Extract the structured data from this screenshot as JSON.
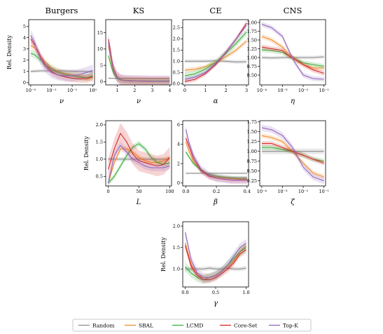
{
  "colors": {
    "Random": "#8c8c8c",
    "SBAL": "#f28e2b",
    "LCMD": "#3cae3c",
    "Core-Set": "#d62728",
    "Top-K": "#9467bd"
  },
  "chart_data": [
    {
      "type": "line",
      "title": "Burgers",
      "xlabel": "ν",
      "ylabel": "Rel. Density",
      "xscale": "log",
      "xlim": [
        0.0008,
        1.2
      ],
      "ylim": [
        -0.2,
        5.6
      ],
      "xticks": [
        0.001,
        0.01,
        0.1,
        1
      ],
      "xticklabels": [
        "10⁻³",
        "10⁻²",
        "10⁻¹",
        "10⁰"
      ],
      "yticks": [
        0,
        1,
        2,
        3,
        4,
        5
      ],
      "yticklabels": [
        "0",
        "1",
        "2",
        "3",
        "4",
        "5"
      ],
      "x": [
        0.001,
        0.0015,
        0.002,
        0.003,
        0.005,
        0.01,
        0.02,
        0.05,
        0.1,
        0.2,
        0.5,
        1
      ],
      "series": [
        {
          "name": "Random",
          "values": [
            1.0,
            1.02,
            1.03,
            1.05,
            1.05,
            1.05,
            1.05,
            1.05,
            1.03,
            1.0,
            0.98,
            0.95
          ],
          "band": 0.15
        },
        {
          "name": "SBAL",
          "values": [
            3.3,
            3.1,
            2.8,
            2.3,
            1.8,
            1.3,
            1.0,
            0.8,
            0.7,
            0.6,
            0.45,
            0.5
          ],
          "band": 0.3
        },
        {
          "name": "LCMD",
          "values": [
            2.6,
            2.5,
            2.3,
            2.0,
            1.6,
            1.2,
            0.9,
            0.7,
            0.6,
            0.5,
            0.45,
            0.6
          ],
          "band": 0.3
        },
        {
          "name": "Core-Set",
          "values": [
            3.9,
            3.4,
            3.0,
            2.3,
            1.6,
            1.0,
            0.7,
            0.5,
            0.4,
            0.35,
            0.35,
            0.5
          ],
          "band": 0.35
        },
        {
          "name": "Top-K",
          "values": [
            4.2,
            3.6,
            2.9,
            2.1,
            1.4,
            0.9,
            0.7,
            0.6,
            0.6,
            0.7,
            0.9,
            1.1
          ],
          "band": 0.5
        }
      ]
    },
    {
      "type": "line",
      "title": "KS",
      "xlabel": "ν",
      "ylabel": "",
      "xscale": "linear",
      "xlim": [
        0.35,
        4.1
      ],
      "ylim": [
        -1,
        19
      ],
      "xticks": [
        1,
        2,
        3,
        4
      ],
      "xticklabels": [
        "1",
        "2",
        "3",
        "4"
      ],
      "yticks": [
        0,
        5,
        10,
        15
      ],
      "yticklabels": [
        "0",
        "5",
        "10",
        "15"
      ],
      "x": [
        0.5,
        0.6,
        0.7,
        0.8,
        1.0,
        1.2,
        1.5,
        2.0,
        3.0,
        4.0
      ],
      "series": [
        {
          "name": "Random",
          "values": [
            1.1,
            1.0,
            1.0,
            1.0,
            1.0,
            1.0,
            1.0,
            1.0,
            1.0,
            1.0
          ],
          "band": 0.2
        },
        {
          "name": "SBAL",
          "values": [
            11.0,
            8.0,
            5.0,
            3.0,
            1.3,
            0.6,
            0.4,
            0.3,
            0.2,
            0.2
          ],
          "band": 1.0
        },
        {
          "name": "LCMD",
          "values": [
            8.0,
            6.0,
            4.0,
            2.5,
            1.0,
            0.5,
            0.3,
            0.2,
            0.2,
            0.2
          ],
          "band": 0.8
        },
        {
          "name": "Core-Set",
          "values": [
            13.0,
            10.0,
            6.5,
            4.0,
            1.5,
            0.6,
            0.3,
            0.2,
            0.1,
            0.1
          ],
          "band": 1.5
        },
        {
          "name": "Top-K",
          "values": [
            12.0,
            9.0,
            6.0,
            3.5,
            1.4,
            0.6,
            0.3,
            0.2,
            0.1,
            0.1
          ],
          "band": 1.8
        }
      ]
    },
    {
      "type": "line",
      "title": "CE",
      "xlabel": "α",
      "ylabel": "",
      "xscale": "linear",
      "xlim": [
        -0.1,
        3.1
      ],
      "ylim": [
        -0.05,
        2.85
      ],
      "xticks": [
        0,
        1,
        2,
        3
      ],
      "xticklabels": [
        "0",
        "1",
        "2",
        "3"
      ],
      "yticks": [
        0,
        0.5,
        1.0,
        1.5,
        2.0,
        2.5
      ],
      "yticklabels": [
        "0.0",
        "0.5",
        "1.0",
        "1.5",
        "2.0",
        "2.5"
      ],
      "x": [
        0,
        0.5,
        1.0,
        1.5,
        2.0,
        2.5,
        3.0
      ],
      "series": [
        {
          "name": "Random",
          "values": [
            1.0,
            1.0,
            1.0,
            1.02,
            1.0,
            0.97,
            0.98
          ],
          "band": 0.08
        },
        {
          "name": "SBAL",
          "values": [
            0.6,
            0.65,
            0.75,
            0.95,
            1.2,
            1.5,
            1.9
          ],
          "band": 0.1
        },
        {
          "name": "LCMD",
          "values": [
            0.35,
            0.45,
            0.65,
            0.95,
            1.35,
            1.8,
            2.3
          ],
          "band": 0.15
        },
        {
          "name": "Core-Set",
          "values": [
            0.1,
            0.2,
            0.45,
            0.85,
            1.4,
            2.0,
            2.7
          ],
          "band": 0.1
        },
        {
          "name": "Top-K",
          "values": [
            0.2,
            0.3,
            0.5,
            0.9,
            1.4,
            2.0,
            2.6
          ],
          "band": 0.1
        }
      ]
    },
    {
      "type": "line",
      "title": "CNS",
      "xlabel": "η",
      "ylabel": "",
      "xscale": "log",
      "xlim": [
        8e-05,
        0.12
      ],
      "ylim": [
        0.22,
        2.08
      ],
      "xticks": [
        0.0001,
        0.001,
        0.01,
        0.1
      ],
      "xticklabels": [
        "10⁻⁴",
        "10⁻³",
        "10⁻²",
        "10⁻¹"
      ],
      "yticks": [
        0.5,
        0.75,
        1.0,
        1.25,
        1.5,
        1.75,
        2.0
      ],
      "yticklabels": [
        "0.50",
        "0.75",
        "1.00",
        "1.25",
        "1.50",
        "1.75",
        "2.00"
      ],
      "x": [
        0.0001,
        0.0003,
        0.001,
        0.002,
        0.004,
        0.01,
        0.03,
        0.1
      ],
      "series": [
        {
          "name": "Random",
          "values": [
            1.0,
            0.99,
            1.0,
            1.0,
            1.0,
            1.0,
            1.0,
            1.02
          ],
          "band": 0.05
        },
        {
          "name": "SBAL",
          "values": [
            1.6,
            1.5,
            1.3,
            1.1,
            0.95,
            0.8,
            0.7,
            0.7
          ],
          "band": 0.07
        },
        {
          "name": "LCMD",
          "values": [
            1.22,
            1.2,
            1.15,
            1.05,
            0.95,
            0.85,
            0.8,
            0.75
          ],
          "band": 0.07
        },
        {
          "name": "Core-Set",
          "values": [
            1.3,
            1.25,
            1.2,
            1.05,
            0.95,
            0.8,
            0.65,
            0.55
          ],
          "band": 0.07
        },
        {
          "name": "Top-K",
          "values": [
            1.95,
            1.85,
            1.6,
            1.2,
            0.85,
            0.5,
            0.4,
            0.38
          ],
          "band": 0.07
        }
      ]
    },
    {
      "type": "line",
      "title": "",
      "xlabel": "L",
      "ylabel": "Rel. Density",
      "xscale": "linear",
      "xlim": [
        -4,
        103
      ],
      "ylim": [
        0.22,
        2.12
      ],
      "xticks": [
        0,
        50,
        100
      ],
      "xticklabels": [
        "0",
        "50",
        "100"
      ],
      "yticks": [
        0.5,
        1.0,
        1.5,
        2.0
      ],
      "yticklabels": [
        "0.5",
        "1.0",
        "1.5",
        "2.0"
      ],
      "x": [
        0,
        10,
        20,
        30,
        40,
        50,
        60,
        70,
        80,
        90,
        100
      ],
      "series": [
        {
          "name": "Random",
          "values": [
            1.0,
            1.0,
            1.0,
            1.0,
            1.0,
            1.0,
            1.0,
            1.0,
            1.0,
            1.0,
            1.0
          ],
          "band": 0.06
        },
        {
          "name": "SBAL",
          "values": [
            0.3,
            0.9,
            1.3,
            1.3,
            1.2,
            1.05,
            0.95,
            0.9,
            0.9,
            0.95,
            1.05
          ],
          "band": 0.08
        },
        {
          "name": "LCMD",
          "values": [
            0.3,
            0.5,
            0.8,
            1.1,
            1.35,
            1.45,
            1.3,
            1.05,
            0.9,
            0.85,
            0.9
          ],
          "band": 0.08
        },
        {
          "name": "Core-Set",
          "values": [
            0.7,
            1.3,
            1.75,
            1.5,
            1.15,
            0.95,
            0.9,
            0.85,
            0.8,
            0.85,
            1.05
          ],
          "band": 0.3
        },
        {
          "name": "Top-K",
          "values": [
            0.3,
            1.1,
            1.4,
            1.2,
            1.0,
            0.9,
            0.8,
            0.75,
            0.75,
            0.75,
            0.8
          ],
          "band": 0.1
        }
      ]
    },
    {
      "type": "line",
      "title": "",
      "xlabel": "β",
      "ylabel": "",
      "xscale": "linear",
      "xlim": [
        -0.02,
        0.41
      ],
      "ylim": [
        -0.3,
        6.4
      ],
      "xticks": [
        0,
        0.2,
        0.4
      ],
      "xticklabels": [
        "0.0",
        "0.2",
        "0.4"
      ],
      "yticks": [
        0,
        2,
        4,
        6
      ],
      "yticklabels": [
        "0",
        "2",
        "4",
        "6"
      ],
      "x": [
        0,
        0.02,
        0.05,
        0.1,
        0.15,
        0.2,
        0.25,
        0.3,
        0.35,
        0.4
      ],
      "series": [
        {
          "name": "Random",
          "values": [
            1.0,
            1.0,
            1.0,
            1.0,
            1.0,
            1.0,
            1.0,
            1.0,
            1.0,
            1.0
          ],
          "band": 0.1
        },
        {
          "name": "SBAL",
          "values": [
            4.2,
            3.3,
            2.2,
            1.2,
            0.8,
            0.6,
            0.5,
            0.45,
            0.4,
            0.4
          ],
          "band": 0.2
        },
        {
          "name": "LCMD",
          "values": [
            3.2,
            2.7,
            2.0,
            1.3,
            0.9,
            0.7,
            0.6,
            0.55,
            0.5,
            0.5
          ],
          "band": 0.2
        },
        {
          "name": "Core-Set",
          "values": [
            4.6,
            3.8,
            2.5,
            1.3,
            0.7,
            0.5,
            0.4,
            0.3,
            0.3,
            0.3
          ],
          "band": 0.3
        },
        {
          "name": "Top-K",
          "values": [
            5.5,
            4.2,
            2.8,
            1.4,
            0.8,
            0.5,
            0.4,
            0.3,
            0.3,
            0.3
          ],
          "band": 0.4
        }
      ]
    },
    {
      "type": "line",
      "title": "",
      "xlabel": "ζ",
      "ylabel": "",
      "xscale": "log",
      "xlim": [
        8e-05,
        0.12
      ],
      "ylim": [
        0.12,
        1.78
      ],
      "xticks": [
        0.0001,
        0.001,
        0.01,
        0.1
      ],
      "xticklabels": [
        "10⁻⁴",
        "10⁻³",
        "10⁻²",
        "10⁻¹"
      ],
      "yticks": [
        0.25,
        0.5,
        0.75,
        1.0,
        1.25,
        1.5,
        1.75
      ],
      "yticklabels": [
        "0.25",
        "0.50",
        "0.75",
        "1.00",
        "1.25",
        "1.50",
        "1.75"
      ],
      "x": [
        0.0001,
        0.0003,
        0.001,
        0.003,
        0.01,
        0.03,
        0.1
      ],
      "series": [
        {
          "name": "Random",
          "values": [
            1.0,
            1.0,
            1.0,
            1.0,
            1.0,
            1.0,
            1.0
          ],
          "band": 0.07
        },
        {
          "name": "SBAL",
          "values": [
            1.4,
            1.35,
            1.25,
            1.0,
            0.7,
            0.45,
            0.35
          ],
          "band": 0.06
        },
        {
          "name": "LCMD",
          "values": [
            1.1,
            1.1,
            1.05,
            1.0,
            0.9,
            0.8,
            0.75
          ],
          "band": 0.06
        },
        {
          "name": "Core-Set",
          "values": [
            1.2,
            1.2,
            1.1,
            1.0,
            0.9,
            0.8,
            0.7
          ],
          "band": 0.06
        },
        {
          "name": "Top-K",
          "values": [
            1.6,
            1.55,
            1.4,
            1.1,
            0.6,
            0.35,
            0.25
          ],
          "band": 0.08
        }
      ]
    },
    {
      "type": "line",
      "title": "",
      "xlabel": "γ",
      "ylabel": "Rel. Density",
      "xscale": "linear",
      "xlim": [
        -0.04,
        1.04
      ],
      "ylim": [
        0.58,
        2.1
      ],
      "xticks": [
        0,
        0.5,
        1.0
      ],
      "xticklabels": [
        "0.0",
        "0.5",
        "1.0"
      ],
      "yticks": [
        1.0,
        1.5,
        2.0
      ],
      "yticklabels": [
        "1.0",
        "1.5",
        "2.0"
      ],
      "x": [
        0,
        0.1,
        0.2,
        0.3,
        0.4,
        0.5,
        0.6,
        0.7,
        0.8,
        0.9,
        1.0
      ],
      "series": [
        {
          "name": "Random",
          "values": [
            1.0,
            1.0,
            1.0,
            1.0,
            1.02,
            1.0,
            1.0,
            1.02,
            1.0,
            1.0,
            1.02
          ],
          "band": 0.05
        },
        {
          "name": "SBAL",
          "values": [
            1.6,
            1.1,
            0.85,
            0.8,
            0.8,
            0.85,
            0.95,
            1.05,
            1.2,
            1.4,
            1.55
          ],
          "band": 0.08
        },
        {
          "name": "LCMD",
          "values": [
            1.05,
            0.9,
            0.8,
            0.75,
            0.8,
            0.85,
            0.95,
            1.1,
            1.25,
            1.4,
            1.5
          ],
          "band": 0.1
        },
        {
          "name": "Core-Set",
          "values": [
            1.55,
            1.05,
            0.85,
            0.75,
            0.75,
            0.8,
            0.9,
            1.0,
            1.15,
            1.35,
            1.45
          ],
          "band": 0.08
        },
        {
          "name": "Top-K",
          "values": [
            1.85,
            1.2,
            0.9,
            0.8,
            0.8,
            0.85,
            0.95,
            1.1,
            1.3,
            1.5,
            1.6
          ],
          "band": 0.1
        }
      ]
    }
  ],
  "legend": {
    "placement": "bottom",
    "entries": [
      "Random",
      "SBAL",
      "LCMD",
      "Core-Set",
      "Top-K"
    ]
  }
}
